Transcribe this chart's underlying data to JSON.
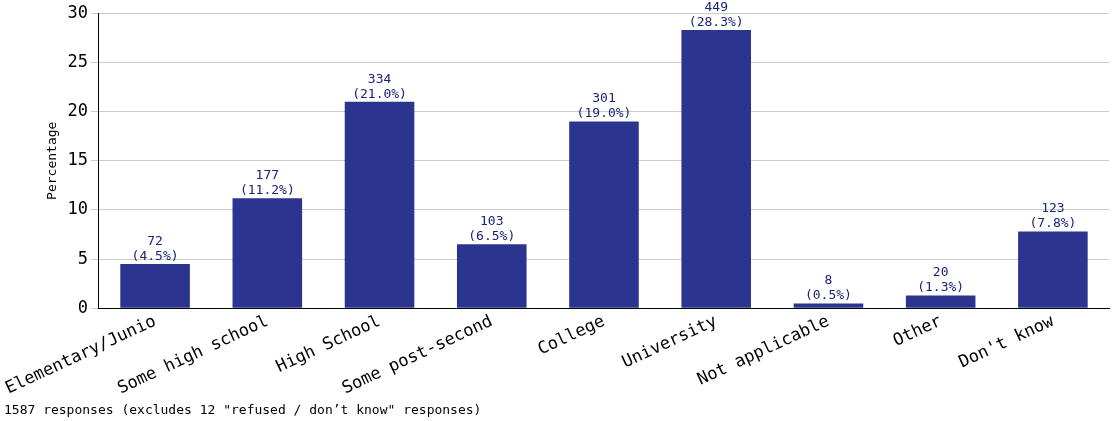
{
  "chart_data": {
    "type": "bar",
    "ylabel": "Percentage",
    "categories": [
      "Elementary/Junio",
      "Some high school",
      "High School",
      "Some post-second",
      "College",
      "University",
      "Not applicable",
      "Other",
      "Don't know"
    ],
    "values": [
      4.5,
      11.2,
      21.0,
      6.5,
      19.0,
      28.3,
      0.5,
      1.3,
      7.8
    ],
    "value_labels": [
      "72\n(4.5%)",
      "177\n(11.2%)",
      "334\n(21.0%)",
      "103\n(6.5%)",
      "301\n(19.0%)",
      "449\n(28.3%)",
      "8\n(0.5%)",
      "20\n(1.3%)",
      "123\n(7.8%)"
    ],
    "color": "#2b3590",
    "ylim": [
      0,
      30
    ],
    "yticks": [
      0,
      5,
      10,
      15,
      20,
      25,
      30
    ],
    "grid": "y",
    "legend": false,
    "annotations": [
      "1587 responses (excludes 12 \"refused / don’t know\" responses)"
    ]
  }
}
